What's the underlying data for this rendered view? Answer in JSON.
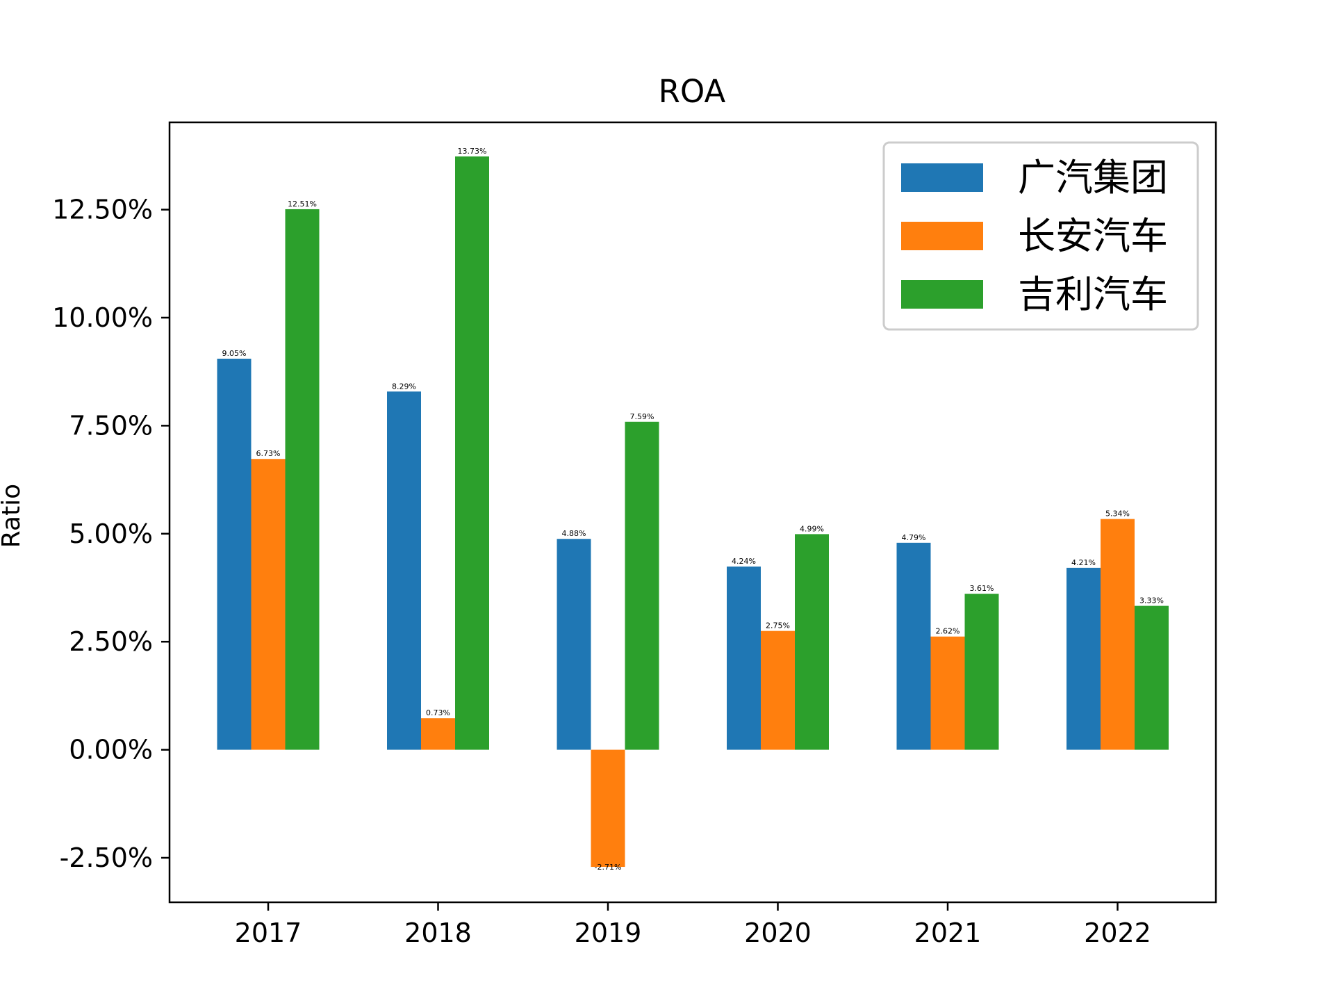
{
  "chart_data": {
    "type": "bar",
    "title": "ROA",
    "xlabel": "",
    "ylabel": "Ratio",
    "categories": [
      "2017",
      "2018",
      "2019",
      "2020",
      "2021",
      "2022"
    ],
    "series": [
      {
        "name": "广汽集团",
        "color": "#1f77b4",
        "values": [
          9.05,
          8.29,
          4.88,
          4.24,
          4.79,
          4.21
        ],
        "labels": [
          "9.05%",
          "8.29%",
          "4.88%",
          "4.24%",
          "4.79%",
          "4.21%"
        ]
      },
      {
        "name": "长安汽车",
        "color": "#ff7f0e",
        "values": [
          6.73,
          0.73,
          -2.71,
          2.75,
          2.62,
          5.34
        ],
        "labels": [
          "6.73%",
          "0.73%",
          "-2.71%",
          "2.75%",
          "2.62%",
          "5.34%"
        ]
      },
      {
        "name": "吉利汽车",
        "color": "#2ca02c",
        "values": [
          12.51,
          13.73,
          7.59,
          4.99,
          3.61,
          3.33
        ],
        "labels": [
          "12.51%",
          "13.73%",
          "7.59%",
          "4.99%",
          "3.61%",
          "3.33%"
        ]
      }
    ],
    "yticks": [
      -2.5,
      0,
      2.5,
      5,
      7.5,
      10,
      12.5
    ],
    "ytick_labels": [
      "-2.50%",
      "0.00%",
      "2.50%",
      "5.00%",
      "7.50%",
      "10.00%",
      "12.50%"
    ],
    "ylim": [
      -3.53,
      14.52
    ],
    "grid": false,
    "legend_position": "top-right"
  }
}
